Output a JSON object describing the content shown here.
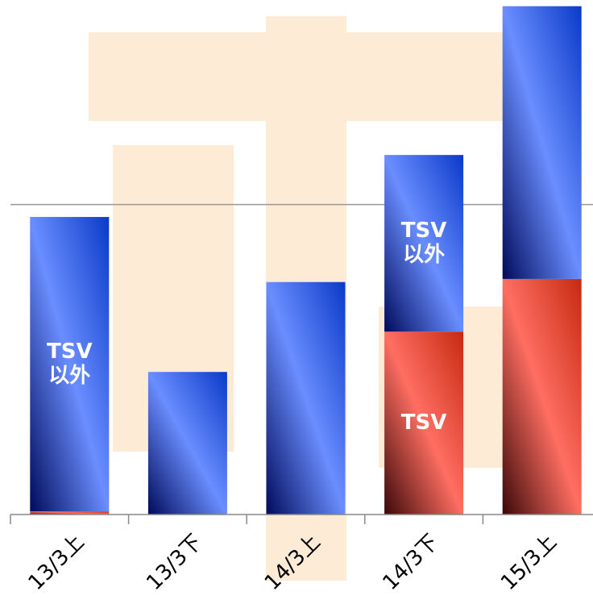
{
  "chart_data": {
    "type": "stacked_bar",
    "categories": [
      "13/3上",
      "13/3下",
      "14/3上",
      "14/3下",
      "15/3上"
    ],
    "series": [
      {
        "name": "TSV",
        "color": "#f0554a",
        "values": [
          1,
          0,
          0,
          59,
          76
        ]
      },
      {
        "name": "TSV以外",
        "color": "#4a72e8",
        "values": [
          95,
          46,
          75,
          57,
          88
        ]
      }
    ],
    "annotations": [
      {
        "lines": [
          "TSV",
          "以外"
        ],
        "series": "TSV以外",
        "category": "13/3上"
      },
      {
        "lines": [
          "TSV",
          "以外"
        ],
        "series": "TSV以外",
        "category": "14/3下"
      },
      {
        "lines": [
          "TSV"
        ],
        "series": "TSV",
        "category": "14/3下"
      }
    ],
    "ylim": [
      0,
      166
    ],
    "yticks": [
      100
    ],
    "grid": true
  }
}
